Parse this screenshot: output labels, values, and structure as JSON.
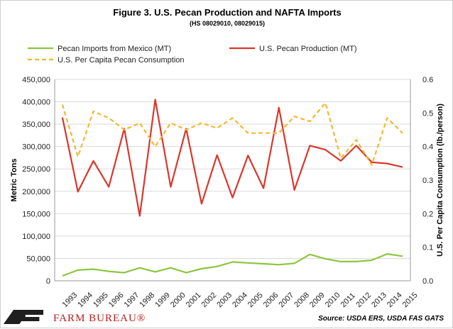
{
  "chart_data": {
    "type": "line",
    "title": "Figure 3. U.S. Pecan Production and NAFTA Imports",
    "subtitle": "(HS 08029010, 08029015)",
    "x": [
      "1993",
      "1994",
      "1995",
      "1996",
      "1997",
      "1998",
      "1999",
      "2000",
      "2001",
      "2002",
      "2003",
      "2004",
      "2005",
      "2006",
      "2007",
      "2008",
      "2009",
      "2010",
      "2011",
      "2012",
      "2013",
      "2014",
      "2015"
    ],
    "ylabel": "Metric Tons",
    "y2label": "U.S. Per Capita Consumption (lb./person)",
    "ylim": [
      0,
      450000
    ],
    "y2lim": [
      0,
      0.6
    ],
    "yticks": [
      "0",
      "50,000",
      "100,000",
      "150,000",
      "200,000",
      "250,000",
      "300,000",
      "350,000",
      "400,000",
      "450,000"
    ],
    "y2ticks": [
      "0.0",
      "0.1",
      "0.2",
      "0.3",
      "0.4",
      "0.5",
      "0.6"
    ],
    "grid": true,
    "legend_position": "top",
    "series": [
      {
        "name": "Pecan Imports from Mexico (MT)",
        "axis": "left",
        "color": "#8cc63f",
        "dash": false,
        "values": [
          11000,
          24000,
          26000,
          21000,
          18000,
          29000,
          20000,
          29000,
          18000,
          27000,
          32000,
          42000,
          40000,
          38000,
          36000,
          39000,
          59000,
          49000,
          43000,
          43000,
          46000,
          60000,
          55000
        ]
      },
      {
        "name": "U.S. Pecan Production (MT)",
        "axis": "left",
        "color": "#d9362b",
        "dash": false,
        "values": [
          365000,
          199000,
          268000,
          210000,
          340000,
          145000,
          405000,
          210000,
          340000,
          172000,
          281000,
          186000,
          280000,
          207000,
          387000,
          203000,
          302000,
          293000,
          268000,
          302000,
          265000,
          262000,
          254000
        ]
      },
      {
        "name": "U.S. Per Capita Pecan Consumption",
        "axis": "right",
        "color": "#f5b731",
        "dash": true,
        "values": [
          0.525,
          0.37,
          0.505,
          0.485,
          0.45,
          0.47,
          0.4,
          0.47,
          0.45,
          0.47,
          0.455,
          0.485,
          0.44,
          0.44,
          0.44,
          0.49,
          0.475,
          0.53,
          0.365,
          0.42,
          0.345,
          0.485,
          0.44
        ]
      }
    ]
  },
  "source": "Source: USDA ERS, USDA FAS GATS",
  "brand": {
    "name": "FARM BUREAU®",
    "logo": "farm-bureau-logo"
  }
}
